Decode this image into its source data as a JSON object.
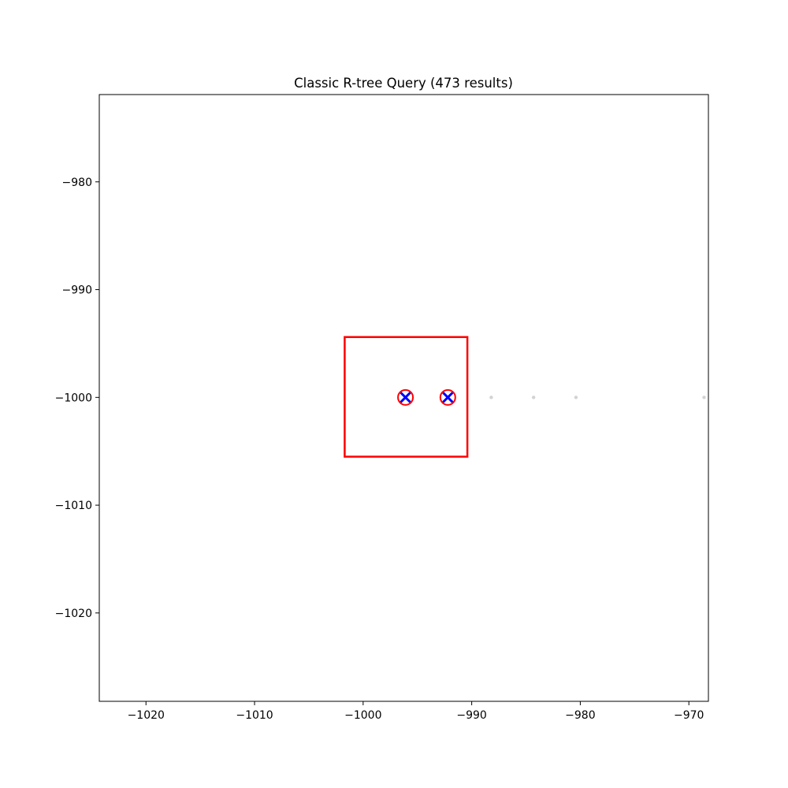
{
  "chart_data": {
    "type": "scatter",
    "title": "Classic R-tree Query (473 results)",
    "xlabel": "",
    "ylabel": "",
    "xlim": [
      -1024.3,
      -968.2
    ],
    "ylim": [
      -1028.2,
      -971.9
    ],
    "xticks": [
      -1020,
      -1010,
      -1000,
      -990,
      -980,
      -970
    ],
    "yticks": [
      -980,
      -990,
      -1000,
      -1010,
      -1020
    ],
    "tick_labels": {
      "x": [
        "−1020",
        "−1010",
        "−1000",
        "−990",
        "−980",
        "−970"
      ],
      "y": [
        "−980",
        "−990",
        "−1000",
        "−1010",
        "−1020"
      ]
    },
    "grid": false,
    "query_box": {
      "x_min": -1001.7,
      "x_max": -990.4,
      "y_min": -1005.5,
      "y_max": -994.4,
      "color": "#ff0000"
    },
    "background_points": {
      "color": "#d3d3d3",
      "points": [
        {
          "x": -988.2,
          "y": -1000
        },
        {
          "x": -984.3,
          "y": -1000
        },
        {
          "x": -980.4,
          "y": -1000
        },
        {
          "x": -968.6,
          "y": -1000
        }
      ]
    },
    "result_points": {
      "circle_color": "#ff0000",
      "marker_color": "#0000ff",
      "points": [
        {
          "x": -996.1,
          "y": -1000
        },
        {
          "x": -992.2,
          "y": -1000
        }
      ]
    }
  }
}
